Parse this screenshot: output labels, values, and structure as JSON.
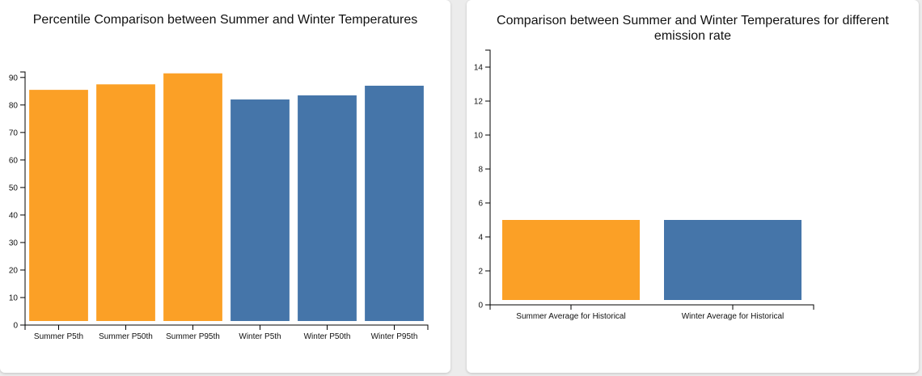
{
  "chart_data": [
    {
      "type": "bar",
      "title": "Percentile Comparison between Summer and Winter Temperatures",
      "categories": [
        "Summer P5th",
        "Summer P50th",
        "Summer P95th",
        "Winter P5th",
        "Winter P50th",
        "Winter P95th"
      ],
      "values": [
        85.5,
        87.5,
        91.5,
        82,
        83.5,
        87
      ],
      "colors": [
        "#fba026",
        "#fba026",
        "#fba026",
        "#4575a9",
        "#4575a9",
        "#4575a9"
      ],
      "ylim": [
        0,
        92
      ],
      "yticks": [
        0,
        10,
        20,
        30,
        40,
        50,
        60,
        70,
        80,
        90
      ],
      "xlabel": "",
      "ylabel": ""
    },
    {
      "type": "bar",
      "title": "Comparison between Summer and Winter Temperatures for different emission rate",
      "categories": [
        "Summer Average for Historical",
        "Winter Average for Historical"
      ],
      "values": [
        5,
        5
      ],
      "colors": [
        "#fba026",
        "#4575a9"
      ],
      "ylim": [
        0,
        15
      ],
      "yticks": [
        0,
        2,
        4,
        6,
        8,
        10,
        12,
        14
      ],
      "xlabel": "",
      "ylabel": ""
    }
  ]
}
